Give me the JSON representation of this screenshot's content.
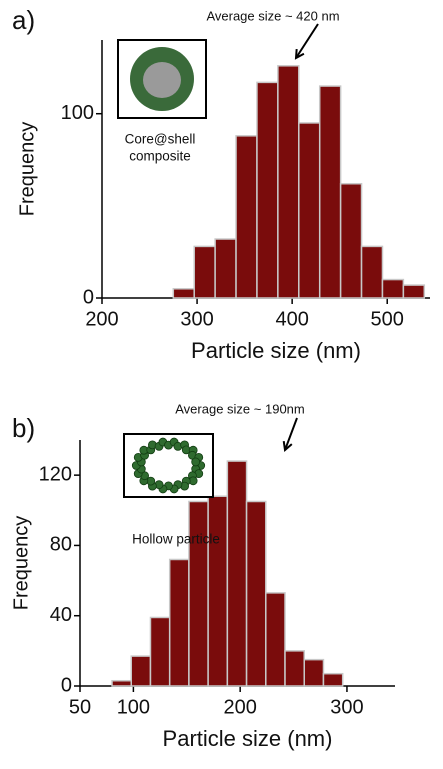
{
  "chart_data": [
    {
      "type": "histogram",
      "panel_label": "a)",
      "annotation": "Average size ~ 420 nm",
      "inset_label": [
        "Core@shell",
        "composite"
      ],
      "x_label": "Particle size (nm)",
      "y_label": "Frequency",
      "bins": [
        275,
        297,
        319,
        341,
        363,
        385,
        407,
        429,
        451,
        473,
        495,
        517,
        539
      ],
      "values": [
        5,
        28,
        32,
        88,
        117,
        126,
        95,
        115,
        62,
        28,
        10,
        7
      ],
      "color": "#7a0c0c",
      "xlim": [
        200,
        545
      ],
      "xticks": [
        200,
        300,
        400,
        500
      ],
      "ylim": [
        0,
        140
      ],
      "yticks": [
        0,
        100
      ]
    },
    {
      "type": "histogram",
      "panel_label": "b)",
      "annotation": "Average size ~ 190nm",
      "inset_label": [
        "Hollow particle"
      ],
      "x_label": "Particle size (nm)",
      "y_label": "Frequency",
      "bins": [
        80,
        98,
        116,
        134,
        152,
        170,
        188,
        206,
        224,
        242,
        260,
        278,
        296
      ],
      "values": [
        3,
        17,
        39,
        72,
        105,
        108,
        128,
        105,
        53,
        20,
        15,
        7
      ],
      "color": "#7a0c0c",
      "xlim": [
        50,
        345
      ],
      "xticks": [
        50,
        100,
        200,
        300
      ],
      "ylim": [
        0,
        140
      ],
      "yticks": [
        0,
        40,
        80,
        120
      ]
    }
  ]
}
